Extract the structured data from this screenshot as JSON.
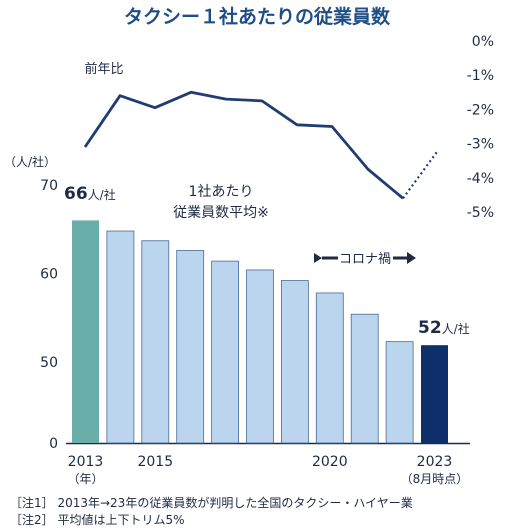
{
  "chart_data": [
    {
      "type": "bar",
      "title": "タクシー１社あたりの従業員数",
      "y_unit_label": "（人/社）",
      "series_label_line1": "1社あたり",
      "series_label_line2": "従業員数平均※",
      "categories": [
        "2013",
        "2014",
        "2015",
        "2016",
        "2017",
        "2018",
        "2019",
        "2020",
        "2021",
        "2022",
        "2023"
      ],
      "x_tick_labels": [
        "2013",
        "2015",
        "2020",
        "2023"
      ],
      "x_sublabels": {
        "first": "（年）",
        "last": "（8月時点）"
      },
      "values": [
        66,
        64.8,
        63.7,
        62.6,
        61.4,
        60.4,
        59.2,
        57.8,
        55.4,
        52.3,
        51.9
      ],
      "ylim": [
        0,
        70
      ],
      "yticks": [
        "0",
        "50",
        "60",
        "70"
      ],
      "highlight_labels": {
        "first": {
          "num": "66",
          "unit": "人/社"
        },
        "last": {
          "num": "52",
          "unit": "人/社"
        }
      },
      "colors": {
        "first": "#6aaeaa",
        "middle": "#bcd5ee",
        "last": "#0e2f6a",
        "outline": "#4a6a95"
      }
    },
    {
      "type": "line",
      "series_label": "前年比",
      "x": [
        "2014",
        "2015",
        "2016",
        "2017",
        "2018",
        "2019",
        "2020",
        "2021",
        "2022",
        "2023"
      ],
      "values": [
        -3.1,
        -1.6,
        -1.95,
        -1.5,
        -1.7,
        -1.75,
        -2.45,
        -2.5,
        -3.75,
        -4.6
      ],
      "projected_end": -3.2,
      "ylim": [
        -5,
        0
      ],
      "yticks": [
        "0%",
        "-1%",
        "-2%",
        "-3%",
        "-4%",
        "-5%"
      ],
      "color": "#1f3d73"
    }
  ],
  "annotation": "コロナ禍",
  "notes": [
    "［注1］ 2013年→23年の従業員数が判明した全国のタクシー・ハイヤー業",
    "［注2］ 平均値は上下トリム5%"
  ]
}
